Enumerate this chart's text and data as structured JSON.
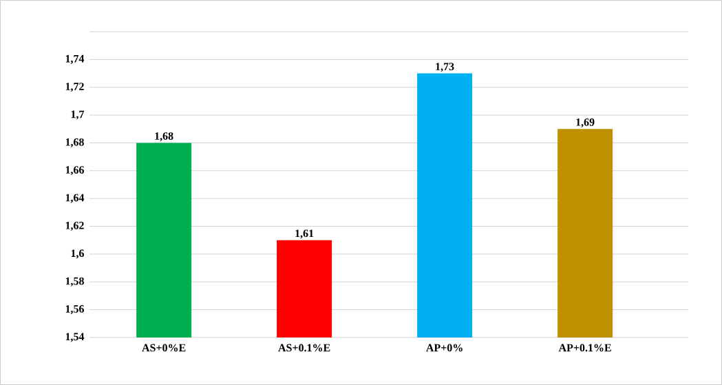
{
  "chart_data": {
    "type": "bar",
    "categories": [
      "AS+0%E",
      "AS+0.1%E",
      "AP+0%",
      "AP+0.1%E"
    ],
    "values": [
      1.68,
      1.61,
      1.73,
      1.69
    ],
    "colors": [
      "#00b050",
      "#ff0000",
      "#00b0f0",
      "#bf9000"
    ],
    "value_labels": [
      "1,68",
      "1,61",
      "1,73",
      "1,69"
    ],
    "ylim": [
      1.54,
      1.76
    ],
    "yticks": [
      {
        "value": 1.54,
        "label": "1,54"
      },
      {
        "value": 1.56,
        "label": "1,56"
      },
      {
        "value": 1.58,
        "label": "1,58"
      },
      {
        "value": 1.6,
        "label": "1,6"
      },
      {
        "value": 1.62,
        "label": "1,62"
      },
      {
        "value": 1.64,
        "label": "1,64"
      },
      {
        "value": 1.66,
        "label": "1,66"
      },
      {
        "value": 1.68,
        "label": "1,68"
      },
      {
        "value": 1.7,
        "label": "1,7"
      },
      {
        "value": 1.72,
        "label": "1,72"
      },
      {
        "value": 1.74,
        "label": "1,74"
      },
      {
        "value": 1.76,
        "label": null
      }
    ],
    "grid": "y"
  }
}
